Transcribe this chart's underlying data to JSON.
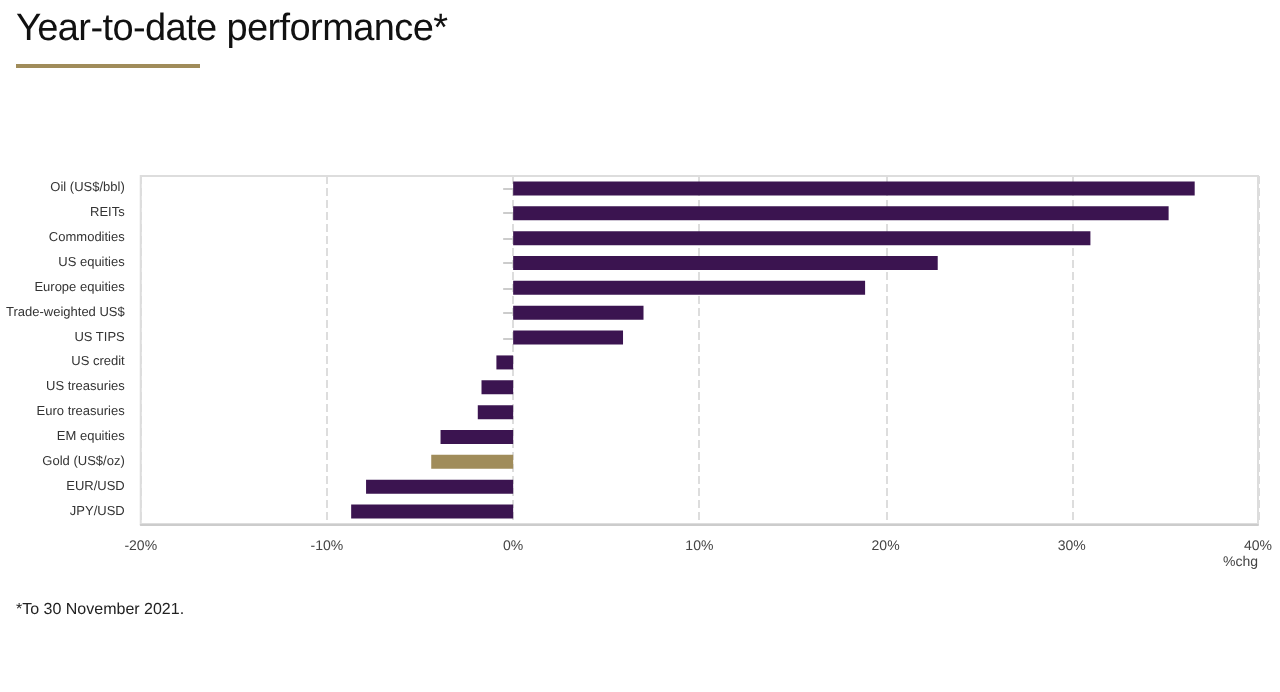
{
  "chart_data": {
    "type": "bar",
    "orientation": "horizontal",
    "title": "Year-to-date performance*",
    "xlabel": "%chg",
    "categories": [
      "Oil (US$/bbl)",
      "REITs",
      "Commodities",
      "US equities",
      "Europe equities",
      "Trade-weighted US$",
      "US TIPS",
      "US credit",
      "US treasuries",
      "Euro treasuries",
      "EM equities",
      "Gold (US$/oz)",
      "EUR/USD",
      "JPY/USD"
    ],
    "values": [
      36.6,
      35.2,
      31.0,
      22.8,
      18.9,
      7.0,
      5.9,
      -0.9,
      -1.7,
      -1.9,
      -3.9,
      -4.4,
      -7.9,
      -8.7
    ],
    "colors": [
      "#3b1450",
      "#3b1450",
      "#3b1450",
      "#3b1450",
      "#3b1450",
      "#3b1450",
      "#3b1450",
      "#3b1450",
      "#3b1450",
      "#3b1450",
      "#3b1450",
      "#a08c5a",
      "#3b1450",
      "#3b1450"
    ],
    "xlim": [
      -20,
      40
    ],
    "xticks": [
      {
        "value": -20,
        "label": "-20%"
      },
      {
        "value": -10,
        "label": "-10%"
      },
      {
        "value": 0,
        "label": "0%"
      },
      {
        "value": 10,
        "label": "10%"
      },
      {
        "value": 20,
        "label": "20%"
      },
      {
        "value": 30,
        "label": "30%"
      },
      {
        "value": 40,
        "label": "40%"
      }
    ],
    "grid": "x",
    "annotations": [
      "*To 30 November 2021."
    ]
  }
}
